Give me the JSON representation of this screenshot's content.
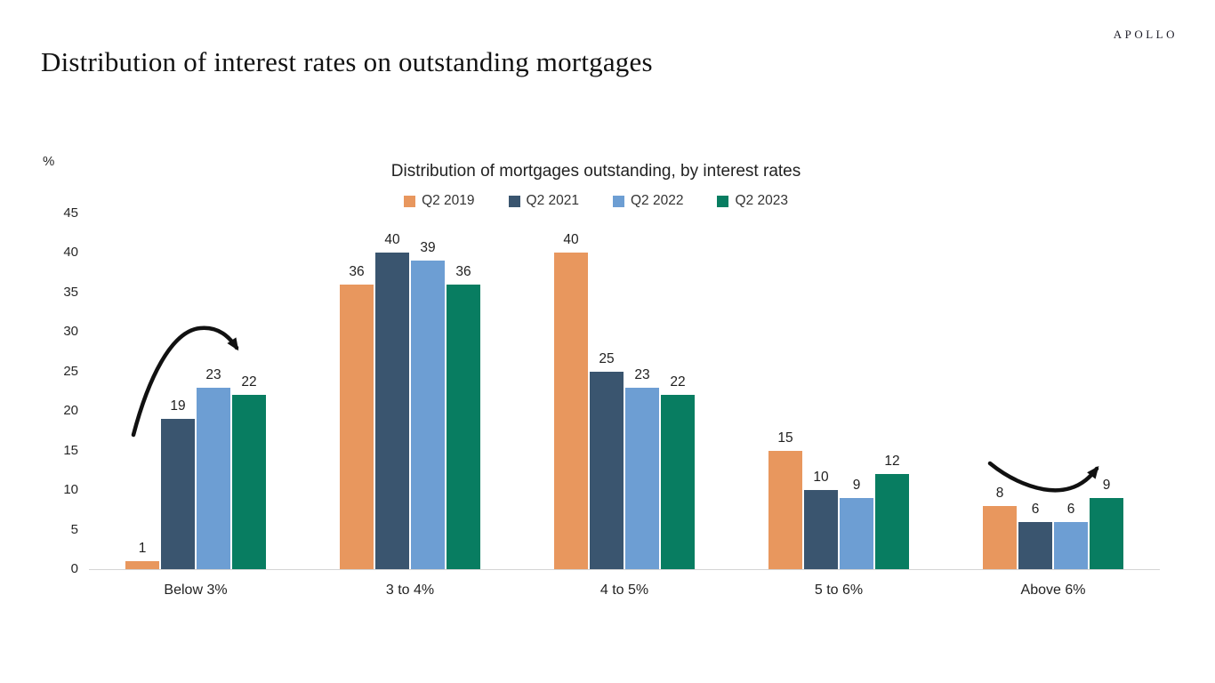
{
  "header": {
    "logo": "APOLLO",
    "title": "Distribution of interest rates on outstanding mortgages"
  },
  "chart_data": {
    "type": "bar",
    "title": "Distribution of mortgages outstanding, by interest rates",
    "xlabel": "",
    "ylabel": "%",
    "categories": [
      "Below 3%",
      "3 to 4%",
      "4 to 5%",
      "5 to 6%",
      "Above 6%"
    ],
    "series": [
      {
        "name": "Q2 2019",
        "color": "#E8975E",
        "values": [
          1,
          36,
          40,
          15,
          8
        ]
      },
      {
        "name": "Q2 2021",
        "color": "#3A556F",
        "values": [
          19,
          40,
          25,
          10,
          6
        ]
      },
      {
        "name": "Q2 2022",
        "color": "#6D9ED3",
        "values": [
          23,
          39,
          23,
          9,
          6
        ]
      },
      {
        "name": "Q2 2023",
        "color": "#087D61",
        "values": [
          22,
          36,
          22,
          12,
          9
        ]
      }
    ],
    "ylim": [
      0,
      45
    ],
    "yticks": [
      0,
      5,
      10,
      15,
      20,
      25,
      30,
      35,
      40,
      45
    ],
    "grid": false,
    "legend_position": "top-center",
    "value_labels": true,
    "annotations": [
      {
        "type": "arrow",
        "shape": "rise-then-fall arc",
        "target": "Below 3% group",
        "color": "#111111"
      },
      {
        "type": "arrow",
        "shape": "dip-then-rise swoosh",
        "target": "Above 6% group",
        "color": "#111111"
      }
    ]
  }
}
